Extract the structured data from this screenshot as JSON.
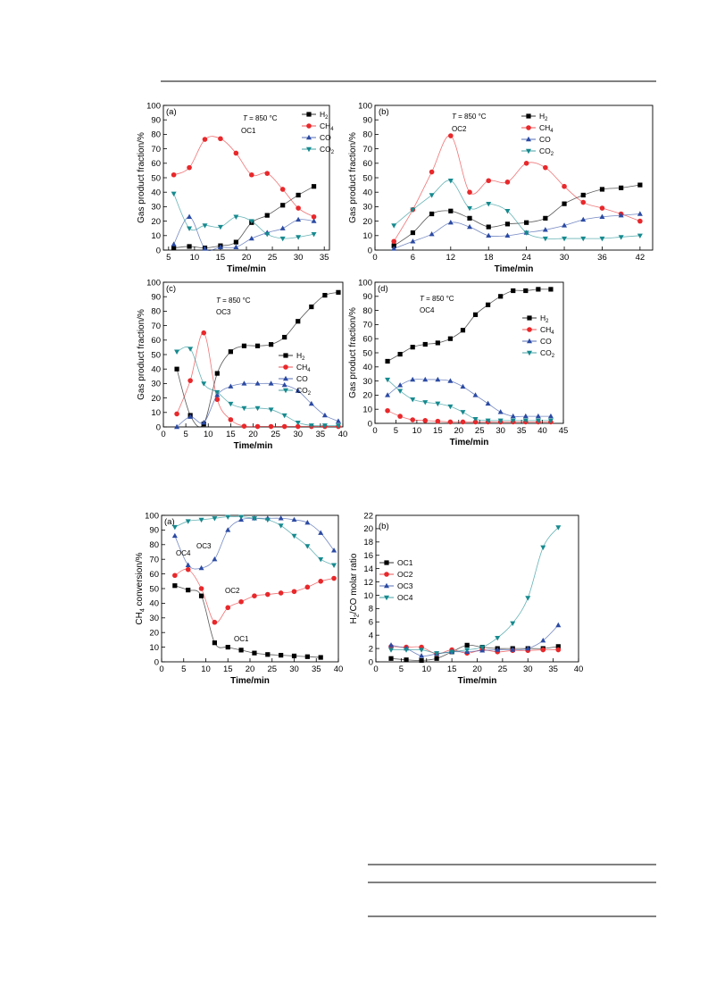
{
  "colors": {
    "H2": "#000000",
    "CH4": "#e8282b",
    "CO": "#2b4aa3",
    "CO2": "#168a8f",
    "OC1": "#000000",
    "OC2": "#e8282b",
    "OC3": "#2b4aa3",
    "OC4": "#168a8f"
  },
  "chart_data": [
    {
      "panel": "(a)",
      "type": "line",
      "condition": "T = 850 °C",
      "sample": "OC1",
      "xlabel": "Time/min",
      "ylabel": "Gas product fraction/%",
      "xlim": [
        4,
        36
      ],
      "ylim": [
        0,
        100
      ],
      "xticks": [
        5,
        10,
        15,
        20,
        25,
        30,
        35
      ],
      "yticks": [
        0,
        10,
        20,
        30,
        40,
        50,
        60,
        70,
        80,
        90,
        100
      ],
      "legend": "top-right",
      "legend_labels": [
        "H2",
        "CH4",
        "CO",
        "CO2"
      ],
      "x": [
        6,
        9,
        12,
        15,
        18,
        21,
        24,
        27,
        30,
        33
      ],
      "series": [
        {
          "name": "H2",
          "marker": "square",
          "values": [
            1.5,
            2.5,
            1.5,
            3,
            5.5,
            19,
            24,
            31,
            38,
            44
          ]
        },
        {
          "name": "CH4",
          "marker": "circle",
          "values": [
            52,
            57,
            76.5,
            77,
            67,
            52,
            53,
            42,
            29,
            23
          ]
        },
        {
          "name": "CO",
          "marker": "triangle-up",
          "values": [
            4,
            23,
            1,
            2,
            2,
            8,
            12,
            15,
            21,
            20
          ]
        },
        {
          "name": "CO2",
          "marker": "triangle-down",
          "values": [
            39,
            15,
            17,
            16,
            23,
            20,
            11,
            8,
            9,
            11
          ]
        }
      ]
    },
    {
      "panel": "(b)",
      "type": "line",
      "condition": "T = 850 °C",
      "sample": "OC2",
      "xlabel": "Time/min",
      "ylabel": "Gas product fraction/%",
      "xlim": [
        0,
        44
      ],
      "ylim": [
        0,
        100
      ],
      "xticks": [
        0,
        6,
        12,
        18,
        24,
        30,
        36,
        42
      ],
      "yticks": [
        0,
        10,
        20,
        30,
        40,
        50,
        60,
        70,
        80,
        90,
        100
      ],
      "legend": "top-right",
      "legend_labels": [
        "H2",
        "CH4",
        "CO",
        "CO2"
      ],
      "x": [
        3,
        6,
        9,
        12,
        15,
        18,
        21,
        24,
        27,
        30,
        33,
        36,
        39,
        42
      ],
      "series": [
        {
          "name": "H2",
          "marker": "square",
          "values": [
            3,
            12,
            25,
            27,
            22,
            16,
            18,
            19,
            22,
            32,
            38,
            42,
            43,
            45
          ]
        },
        {
          "name": "CH4",
          "marker": "circle",
          "values": [
            6,
            28,
            54,
            79,
            40,
            48,
            47,
            60,
            57,
            44,
            33,
            29,
            25,
            20
          ]
        },
        {
          "name": "CO",
          "marker": "triangle-up",
          "values": [
            1,
            6,
            11,
            19,
            16,
            10,
            10,
            12,
            14,
            17,
            21,
            23,
            24,
            25
          ]
        },
        {
          "name": "CO2",
          "marker": "triangle-down",
          "values": [
            17,
            28,
            38,
            48,
            29,
            32,
            27,
            12,
            8,
            8,
            8,
            8,
            9,
            10
          ]
        }
      ]
    },
    {
      "panel": "(c)",
      "type": "line",
      "condition": "T = 850 °C",
      "sample": "OC3",
      "xlabel": "Time/min",
      "ylabel": "Gas product fraction/%",
      "xlim": [
        0,
        40
      ],
      "ylim": [
        0,
        100
      ],
      "xticks": [
        0,
        5,
        10,
        15,
        20,
        25,
        30,
        35,
        40
      ],
      "yticks": [
        0,
        10,
        20,
        30,
        40,
        50,
        60,
        70,
        80,
        90,
        100
      ],
      "legend": "center-right",
      "legend_labels": [
        "H2",
        "CH4",
        "CO",
        "CO2"
      ],
      "x": [
        3,
        6,
        9,
        12,
        15,
        18,
        21,
        24,
        27,
        30,
        33,
        36,
        39
      ],
      "series": [
        {
          "name": "H2",
          "marker": "square",
          "values": [
            40,
            8,
            2,
            37,
            52,
            56,
            56,
            57,
            62,
            73,
            83,
            91,
            93
          ]
        },
        {
          "name": "CH4",
          "marker": "circle",
          "values": [
            9,
            32,
            65,
            19,
            5,
            0.5,
            0.3,
            0.3,
            0.3,
            0.3,
            0.3,
            0.3,
            0.3
          ]
        },
        {
          "name": "CO",
          "marker": "triangle-up",
          "values": [
            0,
            7,
            3,
            22,
            28,
            30,
            30,
            30,
            29,
            25,
            16,
            8,
            4
          ]
        },
        {
          "name": "CO2",
          "marker": "triangle-down",
          "values": [
            52,
            54,
            30,
            24,
            16,
            13,
            13,
            12,
            8,
            3,
            1,
            1,
            1
          ]
        }
      ]
    },
    {
      "panel": "(d)",
      "type": "line",
      "condition": "T = 850 °C",
      "sample": "OC4",
      "xlabel": "Time/min",
      "ylabel": "Gas product fraction/%",
      "xlim": [
        0,
        45
      ],
      "ylim": [
        0,
        100
      ],
      "xticks": [
        0,
        5,
        10,
        15,
        20,
        25,
        30,
        35,
        40,
        45
      ],
      "yticks": [
        0,
        10,
        20,
        30,
        40,
        50,
        60,
        70,
        80,
        90,
        100
      ],
      "legend": "center-right",
      "legend_labels": [
        "H2",
        "CH4",
        "CO",
        "CO2"
      ],
      "x": [
        3,
        6,
        9,
        12,
        15,
        18,
        21,
        24,
        27,
        30,
        33,
        36,
        39,
        42
      ],
      "series": [
        {
          "name": "H2",
          "marker": "square",
          "values": [
            44,
            49,
            54,
            56,
            57,
            60,
            66,
            77,
            84,
            90,
            94,
            94,
            95,
            95
          ]
        },
        {
          "name": "CH4",
          "marker": "circle",
          "values": [
            9,
            5,
            2.5,
            2,
            1.5,
            1,
            1,
            1,
            1,
            1,
            1,
            1,
            1,
            1
          ]
        },
        {
          "name": "CO",
          "marker": "triangle-up",
          "values": [
            20,
            27,
            31,
            31,
            31,
            30,
            26,
            20,
            14,
            8,
            5,
            5,
            5,
            5
          ]
        },
        {
          "name": "CO2",
          "marker": "triangle-down",
          "values": [
            31,
            23,
            17,
            15,
            14,
            12,
            8,
            3,
            2,
            2,
            2,
            2,
            2,
            2
          ]
        }
      ]
    },
    {
      "panel": "(a)",
      "type": "line",
      "xlabel": "Time/min",
      "ylabel": "CH4 conversion/%",
      "xlim": [
        0,
        40
      ],
      "ylim": [
        0,
        100
      ],
      "xticks": [
        0,
        5,
        10,
        15,
        20,
        25,
        30,
        35,
        40
      ],
      "yticks": [
        0,
        10,
        20,
        30,
        40,
        50,
        60,
        70,
        80,
        90,
        100
      ],
      "annotations": [
        "OC4",
        "OC3",
        "OC2",
        "OC1"
      ],
      "x": [
        3,
        6,
        9,
        12,
        15,
        18,
        21,
        24,
        27,
        30,
        33,
        36,
        39
      ],
      "series": [
        {
          "name": "OC1",
          "marker": "square",
          "values": [
            52,
            49,
            45,
            13,
            10,
            8,
            6,
            5,
            4.5,
            4,
            3.5,
            3,
            null
          ]
        },
        {
          "name": "OC2",
          "marker": "circle",
          "values": [
            59,
            63,
            50,
            27,
            37,
            41,
            45,
            46,
            47,
            48,
            51,
            55,
            57
          ]
        },
        {
          "name": "OC3",
          "marker": "triangle-up",
          "values": [
            86,
            66,
            64,
            70,
            90,
            97,
            98,
            98,
            98,
            97,
            95,
            88,
            76
          ]
        },
        {
          "name": "OC4",
          "marker": "triangle-down",
          "values": [
            92,
            96,
            97,
            98,
            99,
            99,
            98,
            97,
            93,
            86,
            79,
            70,
            66
          ]
        }
      ]
    },
    {
      "panel": "(b)",
      "type": "line",
      "xlabel": "Time/min",
      "ylabel": "H2/CO molar ratio",
      "xlim": [
        0,
        40
      ],
      "ylim": [
        0,
        22
      ],
      "xticks": [
        0,
        5,
        10,
        15,
        20,
        25,
        30,
        35,
        40
      ],
      "yticks": [
        0,
        2,
        4,
        6,
        8,
        10,
        12,
        14,
        16,
        18,
        20,
        22
      ],
      "legend": "left",
      "legend_labels": [
        "OC1",
        "OC2",
        "OC3",
        "OC4"
      ],
      "x": [
        3,
        6,
        9,
        12,
        15,
        18,
        21,
        24,
        27,
        30,
        33,
        36
      ],
      "series": [
        {
          "name": "OC1",
          "marker": "square",
          "values": [
            0.5,
            0.3,
            0.2,
            0.5,
            1.5,
            2.5,
            2.2,
            2,
            2,
            2,
            2,
            2.3
          ]
        },
        {
          "name": "OC2",
          "marker": "circle",
          "values": [
            2.3,
            2.2,
            2.2,
            1.2,
            1.8,
            1.3,
            1.8,
            1.5,
            1.7,
            1.7,
            1.8,
            1.8
          ]
        },
        {
          "name": "OC3",
          "marker": "triangle-up",
          "values": [
            2.5,
            2,
            0.9,
            1.2,
            1.5,
            1.5,
            1.7,
            1.8,
            1.8,
            2,
            3.2,
            5.5
          ]
        },
        {
          "name": "OC4",
          "marker": "triangle-down",
          "values": [
            1.8,
            1.8,
            1.8,
            1.3,
            1.5,
            1.8,
            2.2,
            3.6,
            5.8,
            9.6,
            17.2,
            20.2
          ]
        }
      ]
    }
  ]
}
